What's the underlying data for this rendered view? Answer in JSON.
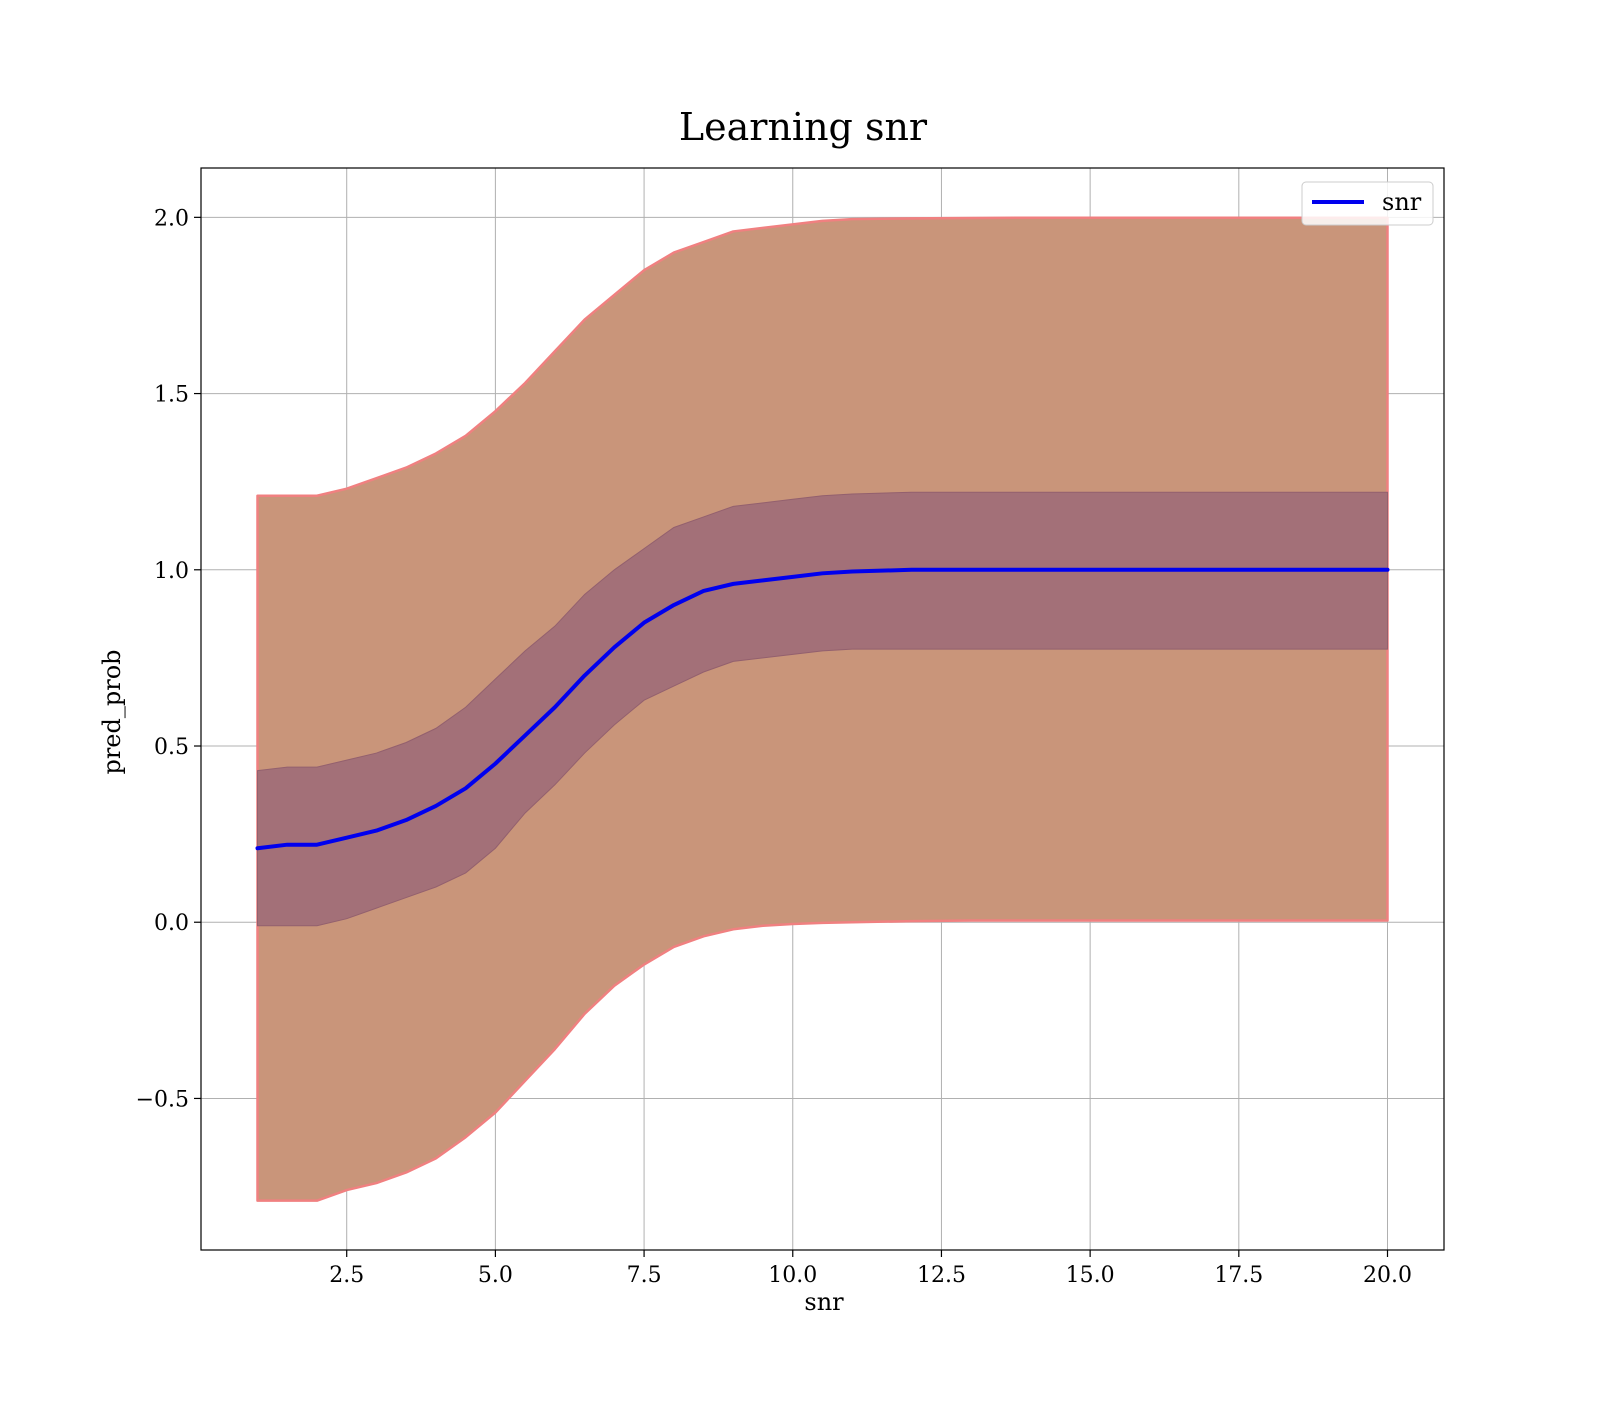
{
  "chart_data": {
    "type": "line",
    "title": "Learning snr",
    "xlabel": "snr",
    "ylabel": "pred_prob",
    "xlim": [
      0.05,
      20.95
    ],
    "ylim": [
      -0.93,
      2.14
    ],
    "grid": true,
    "legend_position": "top-right",
    "x_ticks": [
      2.5,
      5.0,
      7.5,
      10.0,
      12.5,
      15.0,
      17.5,
      20.0
    ],
    "x_tick_labels": [
      "2.5",
      "5.0",
      "7.5",
      "10.0",
      "12.5",
      "15.0",
      "17.5",
      "20.0"
    ],
    "y_ticks": [
      -0.5,
      0.0,
      0.5,
      1.0,
      1.5,
      2.0
    ],
    "y_tick_labels": [
      "−0.5",
      "0.0",
      "0.5",
      "1.0",
      "1.5",
      "2.0"
    ],
    "colors": {
      "line": "#0000ee",
      "inner_band": "#a37078",
      "outer_band": "#c9957a",
      "outer_band_edge": "#f08080",
      "grid": "#b0b0b0"
    },
    "series": [
      {
        "name": "snr",
        "x": [
          1.0,
          1.5,
          2.0,
          2.5,
          3.0,
          3.5,
          4.0,
          4.5,
          5.0,
          5.5,
          6.0,
          6.5,
          7.0,
          7.5,
          8.0,
          8.5,
          9.0,
          9.5,
          10.0,
          10.5,
          11.0,
          12.0,
          13.0,
          14.0,
          15.0,
          16.0,
          17.0,
          18.0,
          19.0,
          20.0
        ],
        "y": [
          0.21,
          0.22,
          0.22,
          0.24,
          0.26,
          0.29,
          0.33,
          0.38,
          0.45,
          0.53,
          0.61,
          0.7,
          0.78,
          0.85,
          0.9,
          0.94,
          0.96,
          0.97,
          0.98,
          0.99,
          0.995,
          1.0,
          1.0,
          1.0,
          1.0,
          1.0,
          1.0,
          1.0,
          1.0,
          1.0
        ],
        "inner_band_lower": [
          -0.01,
          -0.01,
          -0.01,
          0.01,
          0.04,
          0.07,
          0.1,
          0.14,
          0.21,
          0.31,
          0.39,
          0.48,
          0.56,
          0.63,
          0.67,
          0.71,
          0.74,
          0.75,
          0.76,
          0.77,
          0.775,
          0.775,
          0.775,
          0.775,
          0.775,
          0.775,
          0.775,
          0.775,
          0.775,
          0.775
        ],
        "inner_band_upper": [
          0.43,
          0.44,
          0.44,
          0.46,
          0.48,
          0.51,
          0.55,
          0.61,
          0.69,
          0.77,
          0.84,
          0.93,
          1.0,
          1.06,
          1.12,
          1.15,
          1.18,
          1.19,
          1.2,
          1.21,
          1.215,
          1.22,
          1.22,
          1.22,
          1.22,
          1.22,
          1.22,
          1.22,
          1.22,
          1.22
        ],
        "outer_band_lower": [
          -0.79,
          -0.79,
          -0.79,
          -0.76,
          -0.74,
          -0.71,
          -0.67,
          -0.61,
          -0.54,
          -0.45,
          -0.36,
          -0.26,
          -0.18,
          -0.12,
          -0.07,
          -0.04,
          -0.02,
          -0.01,
          -0.005,
          -0.002,
          0.0,
          0.003,
          0.005,
          0.005,
          0.005,
          0.005,
          0.005,
          0.005,
          0.005,
          0.005
        ],
        "outer_band_upper": [
          1.21,
          1.21,
          1.21,
          1.23,
          1.26,
          1.29,
          1.33,
          1.38,
          1.45,
          1.53,
          1.62,
          1.71,
          1.78,
          1.85,
          1.9,
          1.93,
          1.96,
          1.97,
          1.98,
          1.99,
          1.995,
          1.997,
          1.998,
          1.999,
          1.999,
          1.999,
          1.999,
          1.999,
          1.999,
          1.999
        ]
      }
    ]
  }
}
